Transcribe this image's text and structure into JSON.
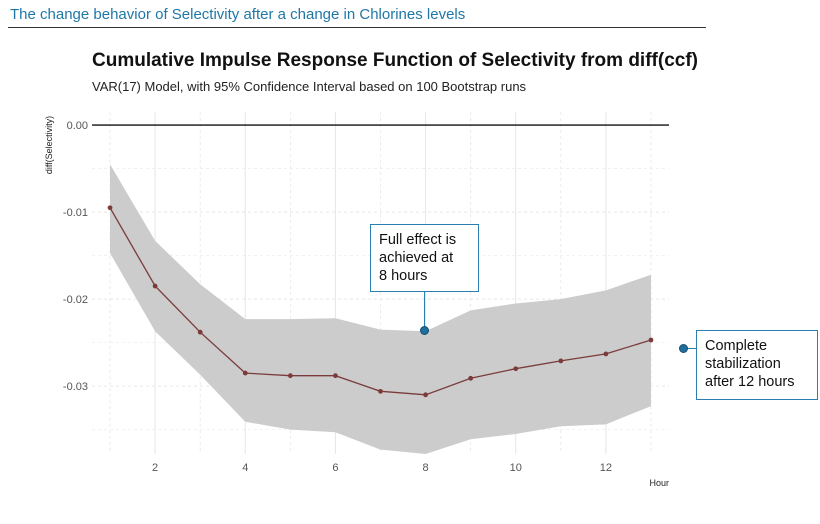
{
  "slide_title": "The change behavior of Selectivity  after a change in Chlorines levels",
  "colors": {
    "line": "#7b3b3b",
    "band": "#cccccc",
    "accent": "#2a7fb0",
    "title": "#1f77a8"
  },
  "annotations": [
    {
      "text_lines": [
        "Full effect is",
        "achieved at",
        "8 hours"
      ]
    },
    {
      "text_lines": [
        "Complete",
        "stabilization",
        "after 12 hours"
      ]
    }
  ],
  "chart_data": {
    "type": "line",
    "title": "Cumulative Impulse Response Function of Selectivity from diff(ccf)",
    "subtitle": "VAR(17) Model, with 95% Confidence Interval based on 100 Bootstrap runs",
    "xlabel": "Hour",
    "ylabel": "diff(Selectivity)",
    "xlim": [
      0.6,
      13.4
    ],
    "ylim": [
      -0.0378,
      0.0015
    ],
    "x_ticks": [
      2,
      4,
      6,
      8,
      10,
      12
    ],
    "y_ticks": [
      0,
      -0.01,
      -0.02,
      -0.03
    ],
    "y_tick_labels": [
      "0.00",
      "-0.01",
      "-0.02",
      "-0.03"
    ],
    "grid": true,
    "zero_line": true,
    "series": [
      {
        "x": [
          1,
          2,
          3,
          4,
          5,
          6,
          7,
          8,
          9,
          10,
          11,
          12,
          13
        ],
        "y": [
          -0.0095,
          -0.0185,
          -0.0238,
          -0.0285,
          -0.0288,
          -0.0288,
          -0.0306,
          -0.031,
          -0.0291,
          -0.028,
          -0.0271,
          -0.0263,
          -0.0247
        ],
        "lower": [
          -0.0147,
          -0.0237,
          -0.0287,
          -0.0341,
          -0.035,
          -0.0353,
          -0.0373,
          -0.0378,
          -0.0361,
          -0.0355,
          -0.0346,
          -0.0344,
          -0.0323
        ],
        "upper": [
          -0.0045,
          -0.0133,
          -0.0183,
          -0.0223,
          -0.0223,
          -0.0222,
          -0.0235,
          -0.0237,
          -0.0213,
          -0.0205,
          -0.02,
          -0.019,
          -0.0172
        ]
      }
    ]
  }
}
